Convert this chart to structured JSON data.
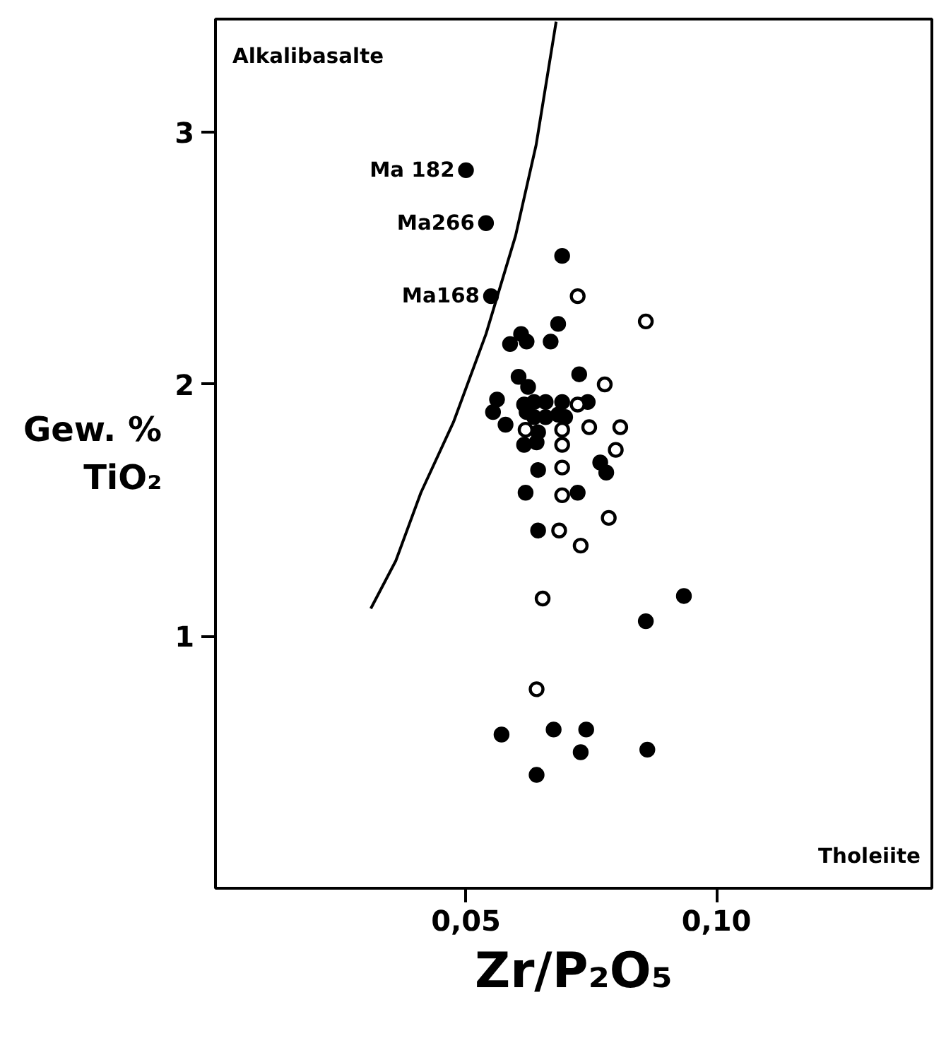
{
  "chart_data": {
    "type": "scatter",
    "xlabel": "Zr/P₂O₅",
    "ylabel": "Gew. %\nTiO₂",
    "xlim": [
      0,
      0.143
    ],
    "ylim": [
      0,
      3.45
    ],
    "xticks": [
      {
        "value": 0.05,
        "label": "0,05"
      },
      {
        "value": 0.1,
        "label": "0,10"
      }
    ],
    "yticks": [
      1,
      2,
      3
    ],
    "grid": false,
    "marker": "circle",
    "annotations": [
      "Alkalibasalte",
      "Tholeiite",
      {
        "text": "Ma 182",
        "x": 0.05,
        "y": 2.85
      },
      {
        "text": "Ma266",
        "x": 0.054,
        "y": 2.64
      },
      {
        "text": "Ma168",
        "x": 0.055,
        "y": 2.35
      }
    ],
    "series": [
      {
        "color": "#000000",
        "x": [
          0.05,
          0.054,
          0.055,
          0.0692,
          0.0684,
          0.061,
          0.0588,
          0.0621,
          0.0669,
          0.0726,
          0.0605,
          0.0624,
          0.0562,
          0.0554,
          0.0579,
          0.0616,
          0.0636,
          0.0659,
          0.0692,
          0.0743,
          0.0621,
          0.0636,
          0.0659,
          0.0684,
          0.0698,
          0.0644,
          0.0616,
          0.0641,
          0.0644,
          0.0768,
          0.078,
          0.0619,
          0.0723,
          0.0644,
          0.0935,
          0.0859,
          0.0571,
          0.0675,
          0.074,
          0.0729,
          0.0862,
          0.0641
        ],
        "values": [
          2.85,
          2.64,
          2.35,
          2.51,
          2.24,
          2.2,
          2.16,
          2.17,
          2.17,
          2.04,
          2.03,
          1.99,
          1.94,
          1.89,
          1.84,
          1.92,
          1.93,
          1.93,
          1.93,
          1.93,
          1.89,
          1.87,
          1.87,
          1.88,
          1.87,
          1.81,
          1.76,
          1.77,
          1.66,
          1.69,
          1.65,
          1.57,
          1.57,
          1.42,
          1.16,
          1.06,
          0.61,
          0.63,
          0.63,
          0.54,
          0.55,
          0.45
        ]
      },
      {
        "color": "#ffffff",
        "x": [
          0.0723,
          0.0859,
          0.0777,
          0.0723,
          0.0619,
          0.0692,
          0.0746,
          0.0808,
          0.0692,
          0.0799,
          0.0692,
          0.0692,
          0.0785,
          0.0686,
          0.0729,
          0.0653,
          0.0641
        ],
        "values": [
          2.35,
          2.25,
          2.0,
          1.92,
          1.82,
          1.82,
          1.83,
          1.83,
          1.76,
          1.74,
          1.67,
          1.56,
          1.47,
          1.42,
          1.36,
          1.15,
          0.79
        ]
      },
      {
        "type": "line",
        "marker": "none",
        "color": "#000000",
        "x": [
          0.031,
          0.036,
          0.041,
          0.0475,
          0.054,
          0.0599,
          0.064,
          0.068
        ],
        "values": [
          1.11,
          1.3,
          1.57,
          1.85,
          2.2,
          2.59,
          2.95,
          3.44
        ]
      }
    ]
  }
}
